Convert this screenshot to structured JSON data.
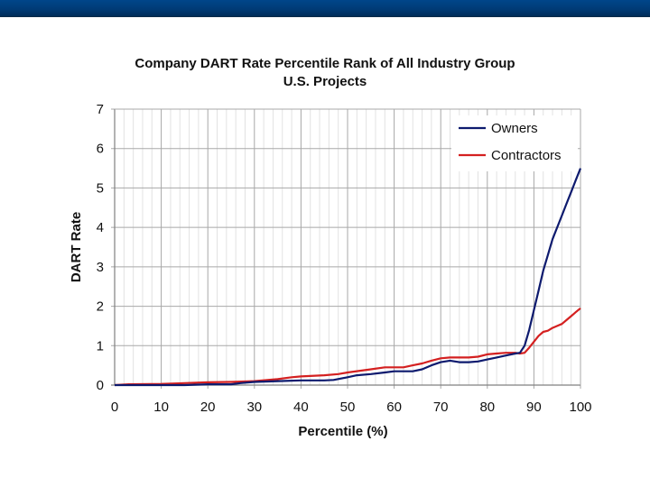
{
  "header": {
    "bar_color": "#003a74"
  },
  "chart_data": {
    "type": "line",
    "title": "Company DART Rate Percentile Rank of All Industry Group",
    "subtitle": "U.S. Projects",
    "xlabel": "Percentile (%)",
    "ylabel": "DART Rate",
    "xlim": [
      0,
      100
    ],
    "ylim": [
      0,
      7
    ],
    "x_ticks": [
      "0",
      "10",
      "20",
      "30",
      "40",
      "50",
      "60",
      "70",
      "80",
      "90",
      "100"
    ],
    "y_ticks": [
      "0",
      "1",
      "2",
      "3",
      "4",
      "5",
      "6",
      "7"
    ],
    "grid": true,
    "legend": "top-right",
    "series": [
      {
        "name": "Owners",
        "color": "#0d1a6e",
        "x": [
          0,
          3,
          10,
          15,
          20,
          25,
          27,
          30,
          35,
          40,
          45,
          47,
          50,
          52,
          55,
          58,
          60,
          62,
          64,
          66,
          68,
          70,
          72,
          74,
          76,
          78,
          80,
          82,
          84,
          86,
          87,
          88,
          89,
          90,
          91,
          92,
          93,
          94,
          95,
          96,
          97,
          98,
          99,
          100
        ],
        "values": [
          0,
          0,
          0,
          0,
          0.02,
          0.02,
          0.05,
          0.08,
          0.1,
          0.12,
          0.12,
          0.13,
          0.2,
          0.25,
          0.28,
          0.32,
          0.35,
          0.35,
          0.35,
          0.4,
          0.5,
          0.58,
          0.62,
          0.58,
          0.58,
          0.6,
          0.65,
          0.7,
          0.75,
          0.8,
          0.82,
          1.0,
          1.4,
          1.9,
          2.4,
          2.9,
          3.3,
          3.7,
          4.0,
          4.3,
          4.6,
          4.9,
          5.2,
          5.5
        ]
      },
      {
        "name": "Contractors",
        "color": "#d42020",
        "x": [
          0,
          3,
          10,
          15,
          20,
          25,
          30,
          35,
          38,
          40,
          45,
          48,
          50,
          55,
          58,
          60,
          62,
          64,
          66,
          68,
          70,
          72,
          74,
          76,
          78,
          80,
          82,
          84,
          86,
          87,
          88,
          89,
          90,
          91,
          92,
          93,
          94,
          95,
          96,
          97,
          98,
          99,
          100
        ],
        "values": [
          0,
          0.02,
          0.03,
          0.05,
          0.07,
          0.08,
          0.1,
          0.15,
          0.2,
          0.22,
          0.25,
          0.28,
          0.32,
          0.4,
          0.45,
          0.45,
          0.45,
          0.5,
          0.55,
          0.62,
          0.68,
          0.7,
          0.7,
          0.7,
          0.72,
          0.78,
          0.8,
          0.82,
          0.82,
          0.8,
          0.82,
          0.95,
          1.1,
          1.25,
          1.35,
          1.38,
          1.45,
          1.5,
          1.55,
          1.65,
          1.75,
          1.85,
          1.95
        ]
      }
    ]
  }
}
